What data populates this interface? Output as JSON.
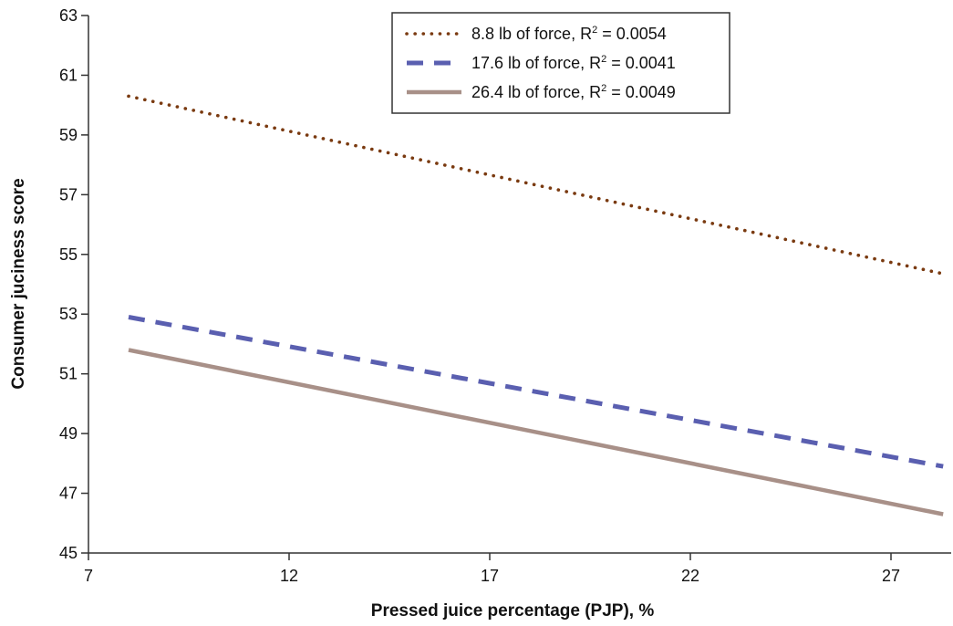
{
  "chart_data": {
    "type": "line",
    "title": "",
    "xlabel": "Pressed juice percentage (PJP), %",
    "ylabel": "Consumer juciness score",
    "xlim": [
      7,
      28.5
    ],
    "ylim": [
      45,
      63
    ],
    "xticks": [
      7,
      12,
      17,
      22,
      27
    ],
    "yticks": [
      45,
      47,
      49,
      51,
      53,
      55,
      57,
      59,
      61,
      63
    ],
    "grid": false,
    "legend_position": "top-center",
    "series": [
      {
        "name": "8.8 lb of force, R",
        "r2_superscript": "2",
        "r2_value": " = 0.0054",
        "style": "dotted",
        "color": "#7a3a10",
        "x": [
          8,
          28.3
        ],
        "y": [
          60.3,
          54.35
        ]
      },
      {
        "name": "17.6 lb of force, R",
        "r2_superscript": "2",
        "r2_value": " = 0.0041",
        "style": "dashed",
        "color": "#5a5fb0",
        "x": [
          8,
          28.3
        ],
        "y": [
          52.9,
          47.9
        ]
      },
      {
        "name": "26.4 lb of force, R",
        "r2_superscript": "2",
        "r2_value": " = 0.0049",
        "style": "solid",
        "color": "#a89088",
        "x": [
          8,
          28.3
        ],
        "y": [
          51.8,
          46.3
        ]
      }
    ]
  }
}
